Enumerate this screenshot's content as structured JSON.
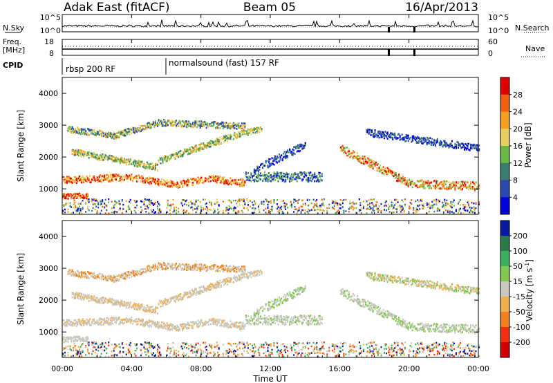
{
  "header": {
    "station": "Adak East (fitACF)",
    "beam": "Beam 05",
    "date": "16/Apr/2013"
  },
  "noise_panel": {
    "left_label": "N.Sky",
    "right_label": "N.Search",
    "y_top": "10^5",
    "y_bottom": "10^0",
    "y2_top": "10^5",
    "y2_bottom": "10^0"
  },
  "freq_panel": {
    "label_line1": "Freq.",
    "label_line2": "[MHz]",
    "y_top": "18",
    "y_bottom": "8",
    "right_label": "Nave",
    "y2_top": "60",
    "y2_bottom": "0"
  },
  "cpid_panel": {
    "label": "CPID",
    "programs": [
      {
        "name": "rbsp 200 RF",
        "start": "00:00"
      },
      {
        "name": "normalsound (fast) 157 RF",
        "start": "06:00"
      }
    ]
  },
  "chart_data": [
    {
      "type": "heatmap",
      "name": "power",
      "ylabel": "Slant Range [km]",
      "y_ticks": [
        1000,
        2000,
        3000,
        4000
      ],
      "ylim": [
        200,
        4500
      ],
      "colorbar_label": "Power [dB]",
      "colorbar_ticks": [
        "28",
        "24",
        "20",
        "16",
        "12",
        "8",
        "4"
      ],
      "colorbar_colors": [
        "#e00000",
        "#f06010",
        "#f5a020",
        "#e8d060",
        "#68b848",
        "#3a7c70",
        "#2a4ab0",
        "#0000d8"
      ],
      "x_ticks": [
        "00:00",
        "04:00",
        "08:00",
        "12:00",
        "16:00",
        "20:00",
        "00:00"
      ],
      "xlim_hours": [
        0,
        24
      ]
    },
    {
      "type": "heatmap",
      "name": "velocity",
      "ylabel": "Slant Range [km]",
      "y_ticks": [
        1000,
        2000,
        3000,
        4000
      ],
      "ylim": [
        200,
        4500
      ],
      "colorbar_label": "Velocity [m s^-1]",
      "colorbar_ticks": [
        "200",
        "100",
        "50",
        "15",
        "-15",
        "-50",
        "-100",
        "-200"
      ],
      "colorbar_colors": [
        "#0a1a9a",
        "#2c7a48",
        "#3ab060",
        "#80c850",
        "#c8c8c0",
        "#f0b050",
        "#f08020",
        "#f03010",
        "#d00000"
      ],
      "x_ticks": [
        "00:00",
        "04:00",
        "08:00",
        "12:00",
        "16:00",
        "20:00",
        "00:00"
      ],
      "xlabel": "Time UT",
      "xlim_hours": [
        0,
        24
      ]
    }
  ]
}
